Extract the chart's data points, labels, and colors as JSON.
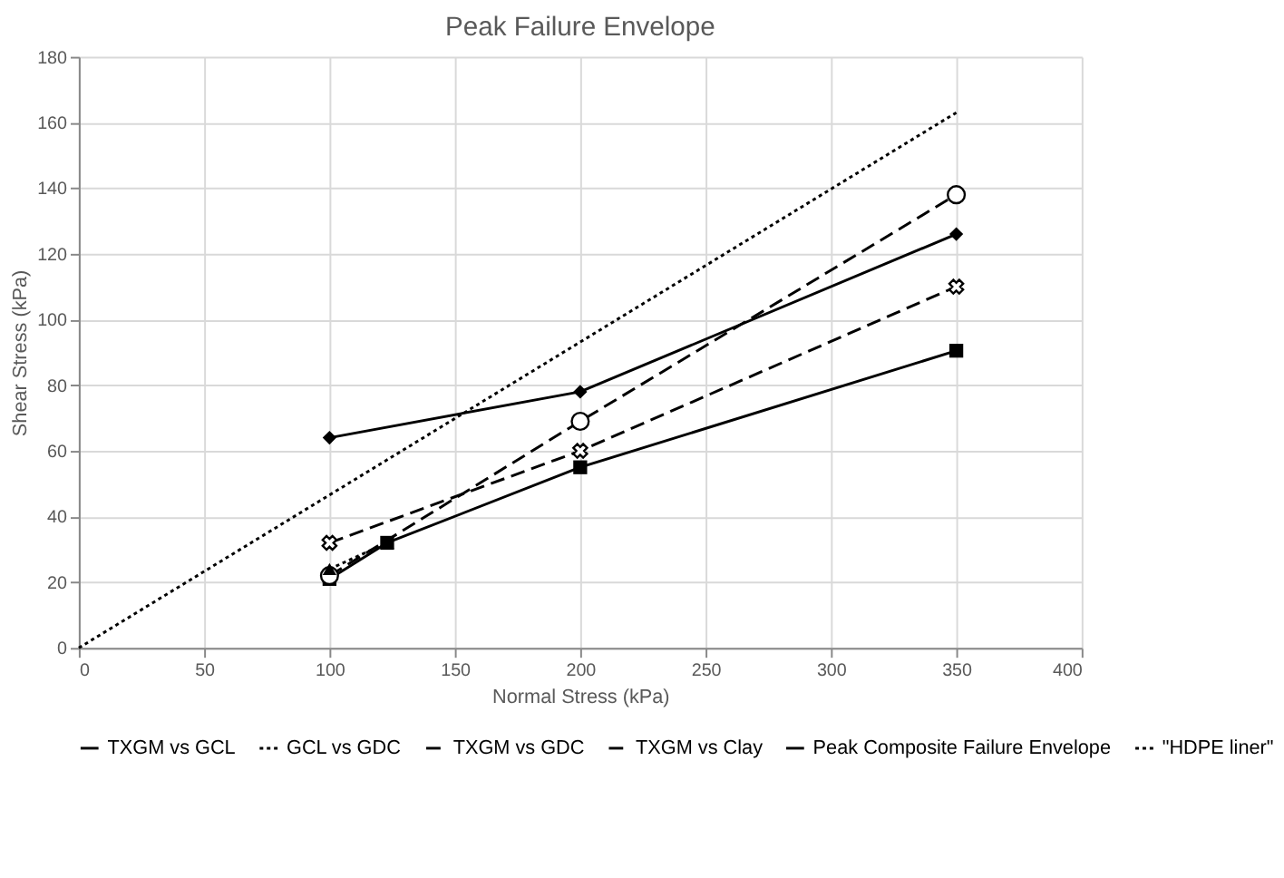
{
  "chart_data": {
    "type": "line",
    "title": "Peak Failure Envelope",
    "xlabel": "Normal Stress (kPa)",
    "ylabel": "Shear Stress (kPa)",
    "xlim": [
      0,
      400
    ],
    "xticks": [
      0,
      50,
      100,
      150,
      200,
      250,
      300,
      350,
      400
    ],
    "ylim": [
      0,
      180
    ],
    "yticks": [
      0,
      20,
      40,
      60,
      80,
      100,
      120,
      140,
      160,
      180
    ],
    "grid": true,
    "legend": "bottom",
    "series": [
      {
        "name": "TXGM vs GCL",
        "color": "#000000",
        "x": [
          100,
          200,
          350
        ],
        "values": [
          64,
          78,
          126
        ],
        "marker": "diamond",
        "line_style": "solid"
      },
      {
        "name": "GCL vs GDC",
        "color": "#000000",
        "x": [
          100,
          123
        ],
        "values": [
          24,
          32
        ],
        "marker": "triangle",
        "line_style": "dotted"
      },
      {
        "name": "TXGM vs GDC",
        "color": "#000000",
        "x": [
          100,
          200,
          350
        ],
        "values": [
          32,
          60,
          110
        ],
        "marker": "cross",
        "line_style": "dashed"
      },
      {
        "name": "TXGM vs Clay",
        "color": "#000000",
        "x": [
          100,
          200,
          350
        ],
        "values": [
          22,
          69,
          138
        ],
        "marker": "circle",
        "line_style": "dashed"
      },
      {
        "name": "Peak Composite Failure Envelope",
        "color": "#000000",
        "x": [
          100,
          123,
          200,
          350
        ],
        "values": [
          21,
          32,
          55,
          90.5
        ],
        "marker": "square",
        "line_style": "solid"
      },
      {
        "name": "\"HDPE liner\"",
        "color": "#000000",
        "x": [
          0,
          350
        ],
        "values": [
          0,
          163
        ],
        "marker": "none",
        "line_style": "dotted"
      }
    ]
  }
}
